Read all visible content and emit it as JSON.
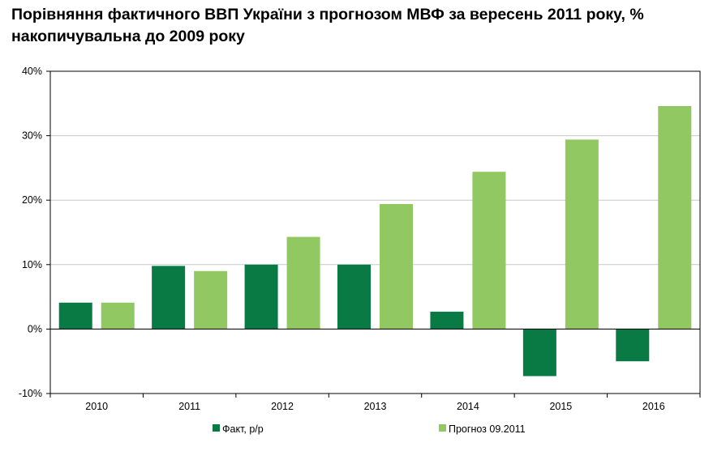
{
  "chart_data": {
    "type": "bar",
    "title": "Порівняння фактичного ВВП України з прогнозом МВФ за вересень 2011 року, % накопичувальна до 2009 року",
    "xlabel": "",
    "ylabel": "",
    "categories": [
      "2010",
      "2011",
      "2012",
      "2013",
      "2014",
      "2015",
      "2016"
    ],
    "series": [
      {
        "name": "Факт, р/р",
        "color": "#0a7a45",
        "values": [
          4.1,
          9.8,
          10.0,
          10.0,
          2.7,
          -7.3,
          -5.0
        ]
      },
      {
        "name": "Прогноз 09.2011",
        "color": "#92c862",
        "values": [
          4.1,
          9.0,
          14.3,
          19.4,
          24.4,
          29.4,
          34.6
        ]
      }
    ],
    "ylim": [
      -10,
      40
    ],
    "yticks": [
      -10,
      0,
      10,
      20,
      30,
      40
    ],
    "ytick_labels": [
      "-10%",
      "0%",
      "10%",
      "20%",
      "30%",
      "40%"
    ],
    "grid": true,
    "legend_position": "bottom"
  }
}
